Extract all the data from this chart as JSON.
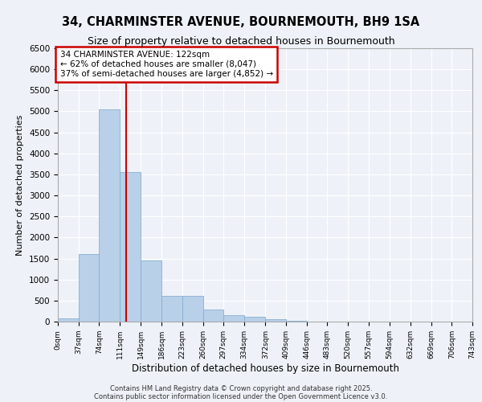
{
  "title": "34, CHARMINSTER AVENUE, BOURNEMOUTH, BH9 1SA",
  "subtitle": "Size of property relative to detached houses in Bournemouth",
  "xlabel": "Distribution of detached houses by size in Bournemouth",
  "ylabel": "Number of detached properties",
  "bar_color": "#b8d0e8",
  "bar_edge_color": "#88afd0",
  "background_color": "#eef2f8",
  "grid_color": "#ffffff",
  "annotation_box_color": "#cc0000",
  "vline_color": "#cc0000",
  "annotation_line1": "34 CHARMINSTER AVENUE: 122sqm",
  "annotation_line2": "← 62% of detached houses are smaller (8,047)",
  "annotation_line3": "37% of semi-detached houses are larger (4,852) →",
  "property_size_sqm": 122,
  "bin_labels": [
    "0sqm",
    "37sqm",
    "74sqm",
    "111sqm",
    "149sqm",
    "186sqm",
    "223sqm",
    "260sqm",
    "297sqm",
    "334sqm",
    "372sqm",
    "409sqm",
    "446sqm",
    "483sqm",
    "520sqm",
    "557sqm",
    "594sqm",
    "632sqm",
    "669sqm",
    "706sqm",
    "743sqm"
  ],
  "bin_edges": [
    0,
    37,
    74,
    111,
    149,
    186,
    223,
    260,
    297,
    334,
    372,
    409,
    446,
    483,
    520,
    557,
    594,
    632,
    669,
    706,
    743
  ],
  "bar_heights": [
    80,
    1600,
    5050,
    3550,
    1450,
    620,
    620,
    290,
    150,
    120,
    60,
    10,
    5,
    3,
    2,
    1,
    0,
    0,
    0,
    0
  ],
  "ylim": [
    0,
    6500
  ],
  "yticks": [
    0,
    500,
    1000,
    1500,
    2000,
    2500,
    3000,
    3500,
    4000,
    4500,
    5000,
    5500,
    6000,
    6500
  ],
  "footer_line1": "Contains HM Land Registry data © Crown copyright and database right 2025.",
  "footer_line2": "Contains public sector information licensed under the Open Government Licence v3.0."
}
